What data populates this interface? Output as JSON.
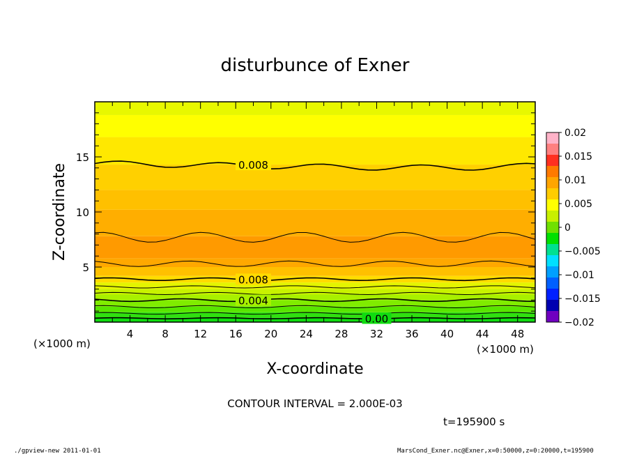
{
  "chart_data": {
    "type": "heatmap",
    "title": "disturbunce of Exner",
    "xlabel": "X-coordinate",
    "ylabel": "Z-coordinate",
    "x_unit": "(×1000 m)",
    "y_unit": "(×1000 m)",
    "xlim": [
      0,
      50
    ],
    "ylim": [
      0,
      20
    ],
    "x_ticks": [
      4,
      8,
      12,
      16,
      20,
      24,
      28,
      32,
      36,
      40,
      44,
      48
    ],
    "y_ticks": [
      5,
      10,
      15
    ],
    "contour_labels": [
      {
        "text": "0.008",
        "x": 18,
        "y": 14.3
      },
      {
        "text": "0.008",
        "x": 18,
        "y": 3.9
      },
      {
        "text": "0.004",
        "x": 18,
        "y": 2.0
      },
      {
        "text": "0.00",
        "x": 32,
        "y": 0.35
      }
    ],
    "colorbar": {
      "ticks": [
        "0.02",
        "0.015",
        "0.01",
        "0.005",
        "0",
        "−0.005",
        "−0.01",
        "−0.015",
        "−0.02"
      ],
      "colors": [
        "#ffb3c8",
        "#ff8080",
        "#ff3020",
        "#ff7a00",
        "#ffa500",
        "#ffcc00",
        "#ffff00",
        "#c8f000",
        "#70e000",
        "#00e000",
        "#00e090",
        "#00e0ff",
        "#00a0ff",
        "#0060ff",
        "#0020ff",
        "#0000b0",
        "#7000c0"
      ]
    },
    "contour_interval_text": "CONTOUR INTERVAL = 2.000E-03",
    "time_text": "t=195900 s"
  },
  "footer": {
    "left": "./gpview-new 2011-01-01",
    "right": "MarsCond_Exner.nc@Exner,x=0:50000,z=0:20000,t=195900"
  }
}
